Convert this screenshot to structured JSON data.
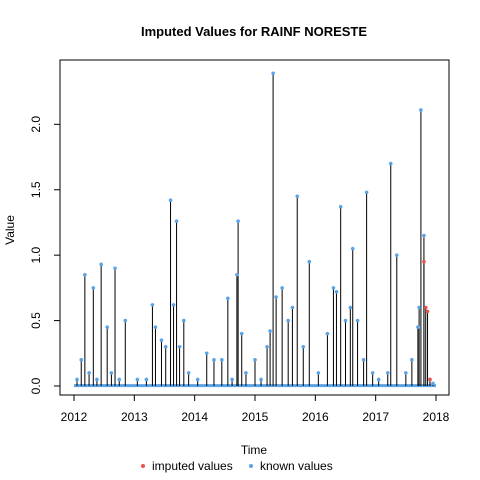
{
  "chart_data": {
    "type": "line",
    "title": "Imputed Values for  RAINF NORESTE",
    "xlabel": "Time",
    "ylabel": "Value",
    "xlim": [
      2012.0,
      2018.0
    ],
    "ylim": [
      0.0,
      2.4
    ],
    "x_ticks": [
      "2012",
      "2013",
      "2014",
      "2015",
      "2016",
      "2017",
      "2018"
    ],
    "y_ticks": [
      "0.0",
      "0.5",
      "1.0",
      "1.5",
      "2.0"
    ],
    "grid": false,
    "legend": {
      "position": "bottom",
      "entries": [
        {
          "label": "imputed values",
          "color": "#e8534b"
        },
        {
          "label": "known values",
          "color": "#5aa3e6"
        }
      ]
    },
    "line_color": "#000000",
    "series": [
      {
        "name": "known values",
        "color": "#5aa3e6",
        "x": [
          2012.05,
          2012.12,
          2012.18,
          2012.25,
          2012.32,
          2012.38,
          2012.45,
          2012.55,
          2012.62,
          2012.68,
          2012.75,
          2012.85,
          2013.05,
          2013.2,
          2013.3,
          2013.35,
          2013.45,
          2013.52,
          2013.6,
          2013.65,
          2013.7,
          2013.75,
          2013.82,
          2013.9,
          2014.05,
          2014.2,
          2014.32,
          2014.45,
          2014.55,
          2014.62,
          2014.7,
          2014.72,
          2014.78,
          2014.85,
          2015.0,
          2015.1,
          2015.2,
          2015.25,
          2015.3,
          2015.35,
          2015.45,
          2015.55,
          2015.62,
          2015.7,
          2015.8,
          2015.9,
          2016.05,
          2016.2,
          2016.3,
          2016.35,
          2016.42,
          2016.5,
          2016.58,
          2016.62,
          2016.7,
          2016.8,
          2016.85,
          2016.95,
          2017.05,
          2017.2,
          2017.25,
          2017.35,
          2017.5,
          2017.6,
          2017.7,
          2017.72,
          2017.75,
          2017.8,
          2017.9,
          2017.95
        ],
        "y": [
          0.05,
          0.2,
          0.85,
          0.1,
          0.75,
          0.05,
          0.93,
          0.45,
          0.1,
          0.9,
          0.05,
          0.5,
          0.05,
          0.05,
          0.62,
          0.45,
          0.35,
          0.3,
          1.42,
          0.62,
          1.26,
          0.3,
          0.5,
          0.1,
          0.05,
          0.25,
          0.2,
          0.2,
          0.67,
          0.05,
          0.85,
          1.26,
          0.4,
          0.1,
          0.2,
          0.05,
          0.3,
          0.42,
          2.39,
          0.68,
          0.75,
          0.5,
          0.6,
          1.45,
          0.3,
          0.95,
          0.1,
          0.4,
          0.75,
          0.72,
          1.37,
          0.5,
          0.6,
          1.05,
          0.5,
          0.2,
          1.48,
          0.1,
          0.05,
          0.1,
          1.7,
          1.0,
          0.1,
          0.2,
          0.45,
          0.6,
          2.11,
          1.15,
          0.05,
          0.02
        ]
      },
      {
        "name": "imputed values",
        "color": "#e8534b",
        "x": [
          2017.8,
          2017.83,
          2017.86,
          2017.9
        ],
        "y": [
          0.95,
          0.6,
          0.57,
          0.05
        ]
      }
    ]
  }
}
